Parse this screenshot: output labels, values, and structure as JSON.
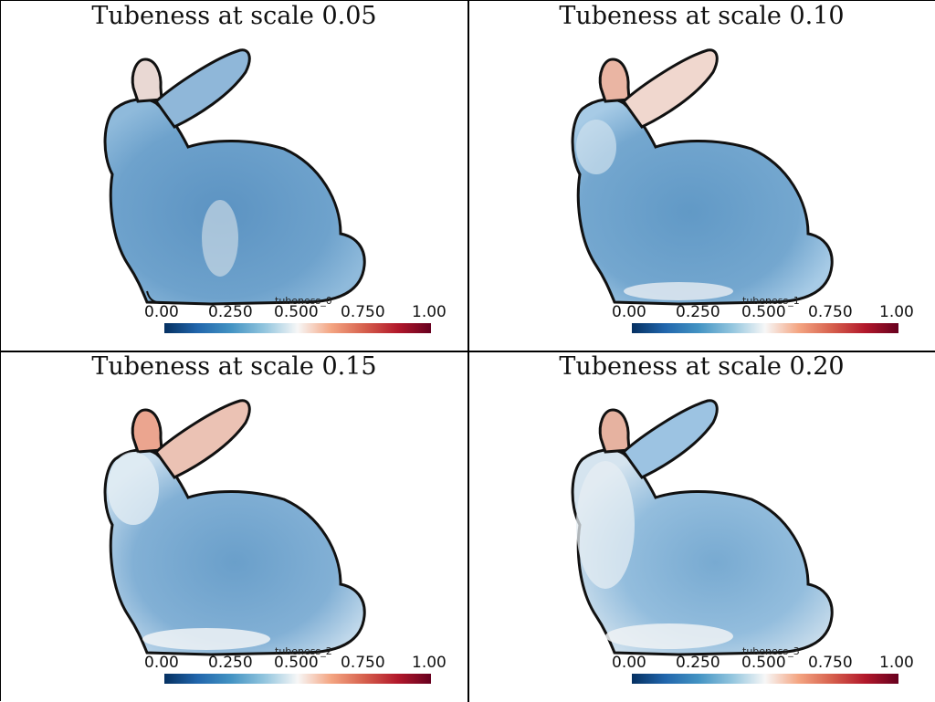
{
  "panels": [
    {
      "title": "Tubeness at scale 0.05",
      "field": "tubeness_0",
      "ticks": [
        "0.00",
        "0.250",
        "0.500",
        "0.750",
        "1.00"
      ],
      "ear_color": "#e9d8d3",
      "ear2_color": "#8fb7d9"
    },
    {
      "title": "Tubeness at scale 0.10",
      "field": "tubeness_1",
      "ticks": [
        "0.00",
        "0.250",
        "0.500",
        "0.750",
        "1.00"
      ],
      "ear_color": "#eab5a3",
      "ear2_color": "#f0d7ce"
    },
    {
      "title": "Tubeness at scale 0.15",
      "field": "tubeness_2",
      "ticks": [
        "0.00",
        "0.250",
        "0.500",
        "0.750",
        "1.00"
      ],
      "ear_color": "#eba58f",
      "ear2_color": "#ebc2b4"
    },
    {
      "title": "Tubeness at scale 0.20",
      "field": "tubeness_3",
      "ticks": [
        "0.00",
        "0.250",
        "0.500",
        "0.750",
        "1.00"
      ],
      "ear_color": "#e6b2a0",
      "ear2_color": "#9cc3e2"
    }
  ],
  "colors": {
    "body_blue": "#6a9fca",
    "light_blue": "#bcd7ea",
    "outline": "#111111"
  }
}
